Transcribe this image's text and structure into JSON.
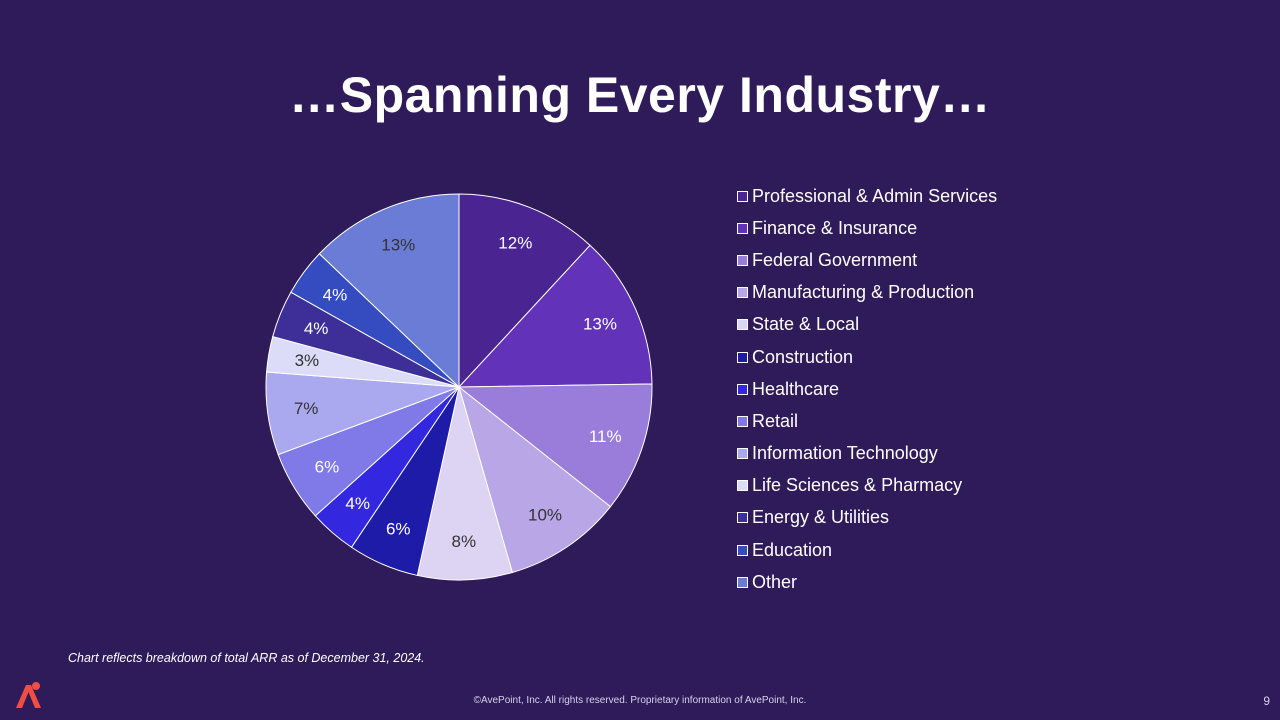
{
  "slide": {
    "title": "…Spanning Every Industry…",
    "note": "Chart reflects breakdown of total ARR as of December 31, 2024.",
    "footer": "©AvePoint, Inc. All rights reserved. Proprietary information of AvePoint, Inc.",
    "page_number": "9",
    "logo_icon": "avepoint-logo-icon"
  },
  "chart_data": {
    "type": "pie",
    "title": "",
    "legend_position": "right",
    "label_format": "percent",
    "categories": [
      "Professional & Admin Services",
      "Finance & Insurance",
      "Federal Government",
      "Manufacturing & Production",
      "State & Local",
      "Construction",
      "Healthcare",
      "Retail",
      "Information Technology",
      "Life Sciences & Pharmacy",
      "Energy & Utilities",
      "Education",
      "Other"
    ],
    "values": [
      12,
      13,
      11,
      10,
      8,
      6,
      4,
      6,
      7,
      3,
      4,
      4,
      13
    ],
    "labels": [
      "12%",
      "13%",
      "11%",
      "10%",
      "8%",
      "6%",
      "4%",
      "6%",
      "7%",
      "3%",
      "4%",
      "4%",
      "13%"
    ],
    "colors": [
      "#4a2592",
      "#6233b8",
      "#9a7ddb",
      "#b9a6e6",
      "#ddd3f3",
      "#1e1ba8",
      "#3328e0",
      "#7f7ae8",
      "#aaa8ef",
      "#dcdcf8",
      "#3d2e98",
      "#344cc0",
      "#6b7cd6"
    ],
    "label_colors": [
      "#ffffff",
      "#ffffff",
      "#ffffff",
      "#333333",
      "#333333",
      "#ffffff",
      "#ffffff",
      "#ffffff",
      "#333333",
      "#333333",
      "#ffffff",
      "#ffffff",
      "#333333"
    ]
  }
}
